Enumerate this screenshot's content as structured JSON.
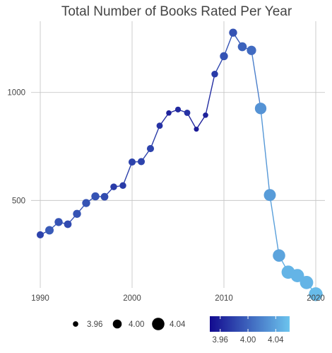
{
  "chart_data": {
    "type": "line",
    "title": "Total Number of Books Rated Per Year",
    "xlabel": "",
    "ylabel": "",
    "xlim": [
      1989,
      2021
    ],
    "ylim": [
      95,
      1330
    ],
    "x_ticks": [
      "1990",
      "2000",
      "2010",
      "2020"
    ],
    "y_ticks": [
      "500",
      "1000"
    ],
    "grid": true,
    "series": [
      {
        "x": [
          1990,
          1991,
          1992,
          1993,
          1994,
          1995,
          1996,
          1997,
          1998,
          1999,
          2000,
          2001,
          2002,
          2003,
          2004,
          2005,
          2006,
          2007,
          2008,
          2009,
          2010,
          2011,
          2012,
          2013,
          2014,
          2015,
          2016,
          2017,
          2018,
          2019,
          2020
        ],
        "y": [
          341,
          362,
          400,
          390,
          438,
          488,
          519,
          517,
          563,
          569,
          678,
          680,
          740,
          846,
          905,
          921,
          906,
          830,
          895,
          1085,
          1168,
          1277,
          1212,
          1195,
          926,
          525,
          245,
          168,
          152,
          120,
          66
        ],
        "avg_rating": [
          3.98,
          3.995,
          3.99,
          3.985,
          3.99,
          3.99,
          3.99,
          3.985,
          3.975,
          3.975,
          3.98,
          3.98,
          3.98,
          3.97,
          3.96,
          3.965,
          3.97,
          3.955,
          3.96,
          3.975,
          3.99,
          3.99,
          4.0,
          4.005,
          4.03,
          4.035,
          4.04,
          4.05,
          4.05,
          4.05,
          4.055
        ]
      }
    ],
    "size_legend": {
      "labels": [
        "3.96",
        "4.00",
        "4.04"
      ],
      "values": [
        3.96,
        4.0,
        4.04
      ]
    },
    "color_legend": {
      "labels": [
        "3.96",
        "4.00",
        "4.04"
      ],
      "values": [
        3.96,
        4.0,
        4.04
      ],
      "range": [
        3.945,
        4.06
      ],
      "low_color": "#120a8f",
      "high_color": "#6cc4ee"
    },
    "legend_position": "bottom"
  }
}
